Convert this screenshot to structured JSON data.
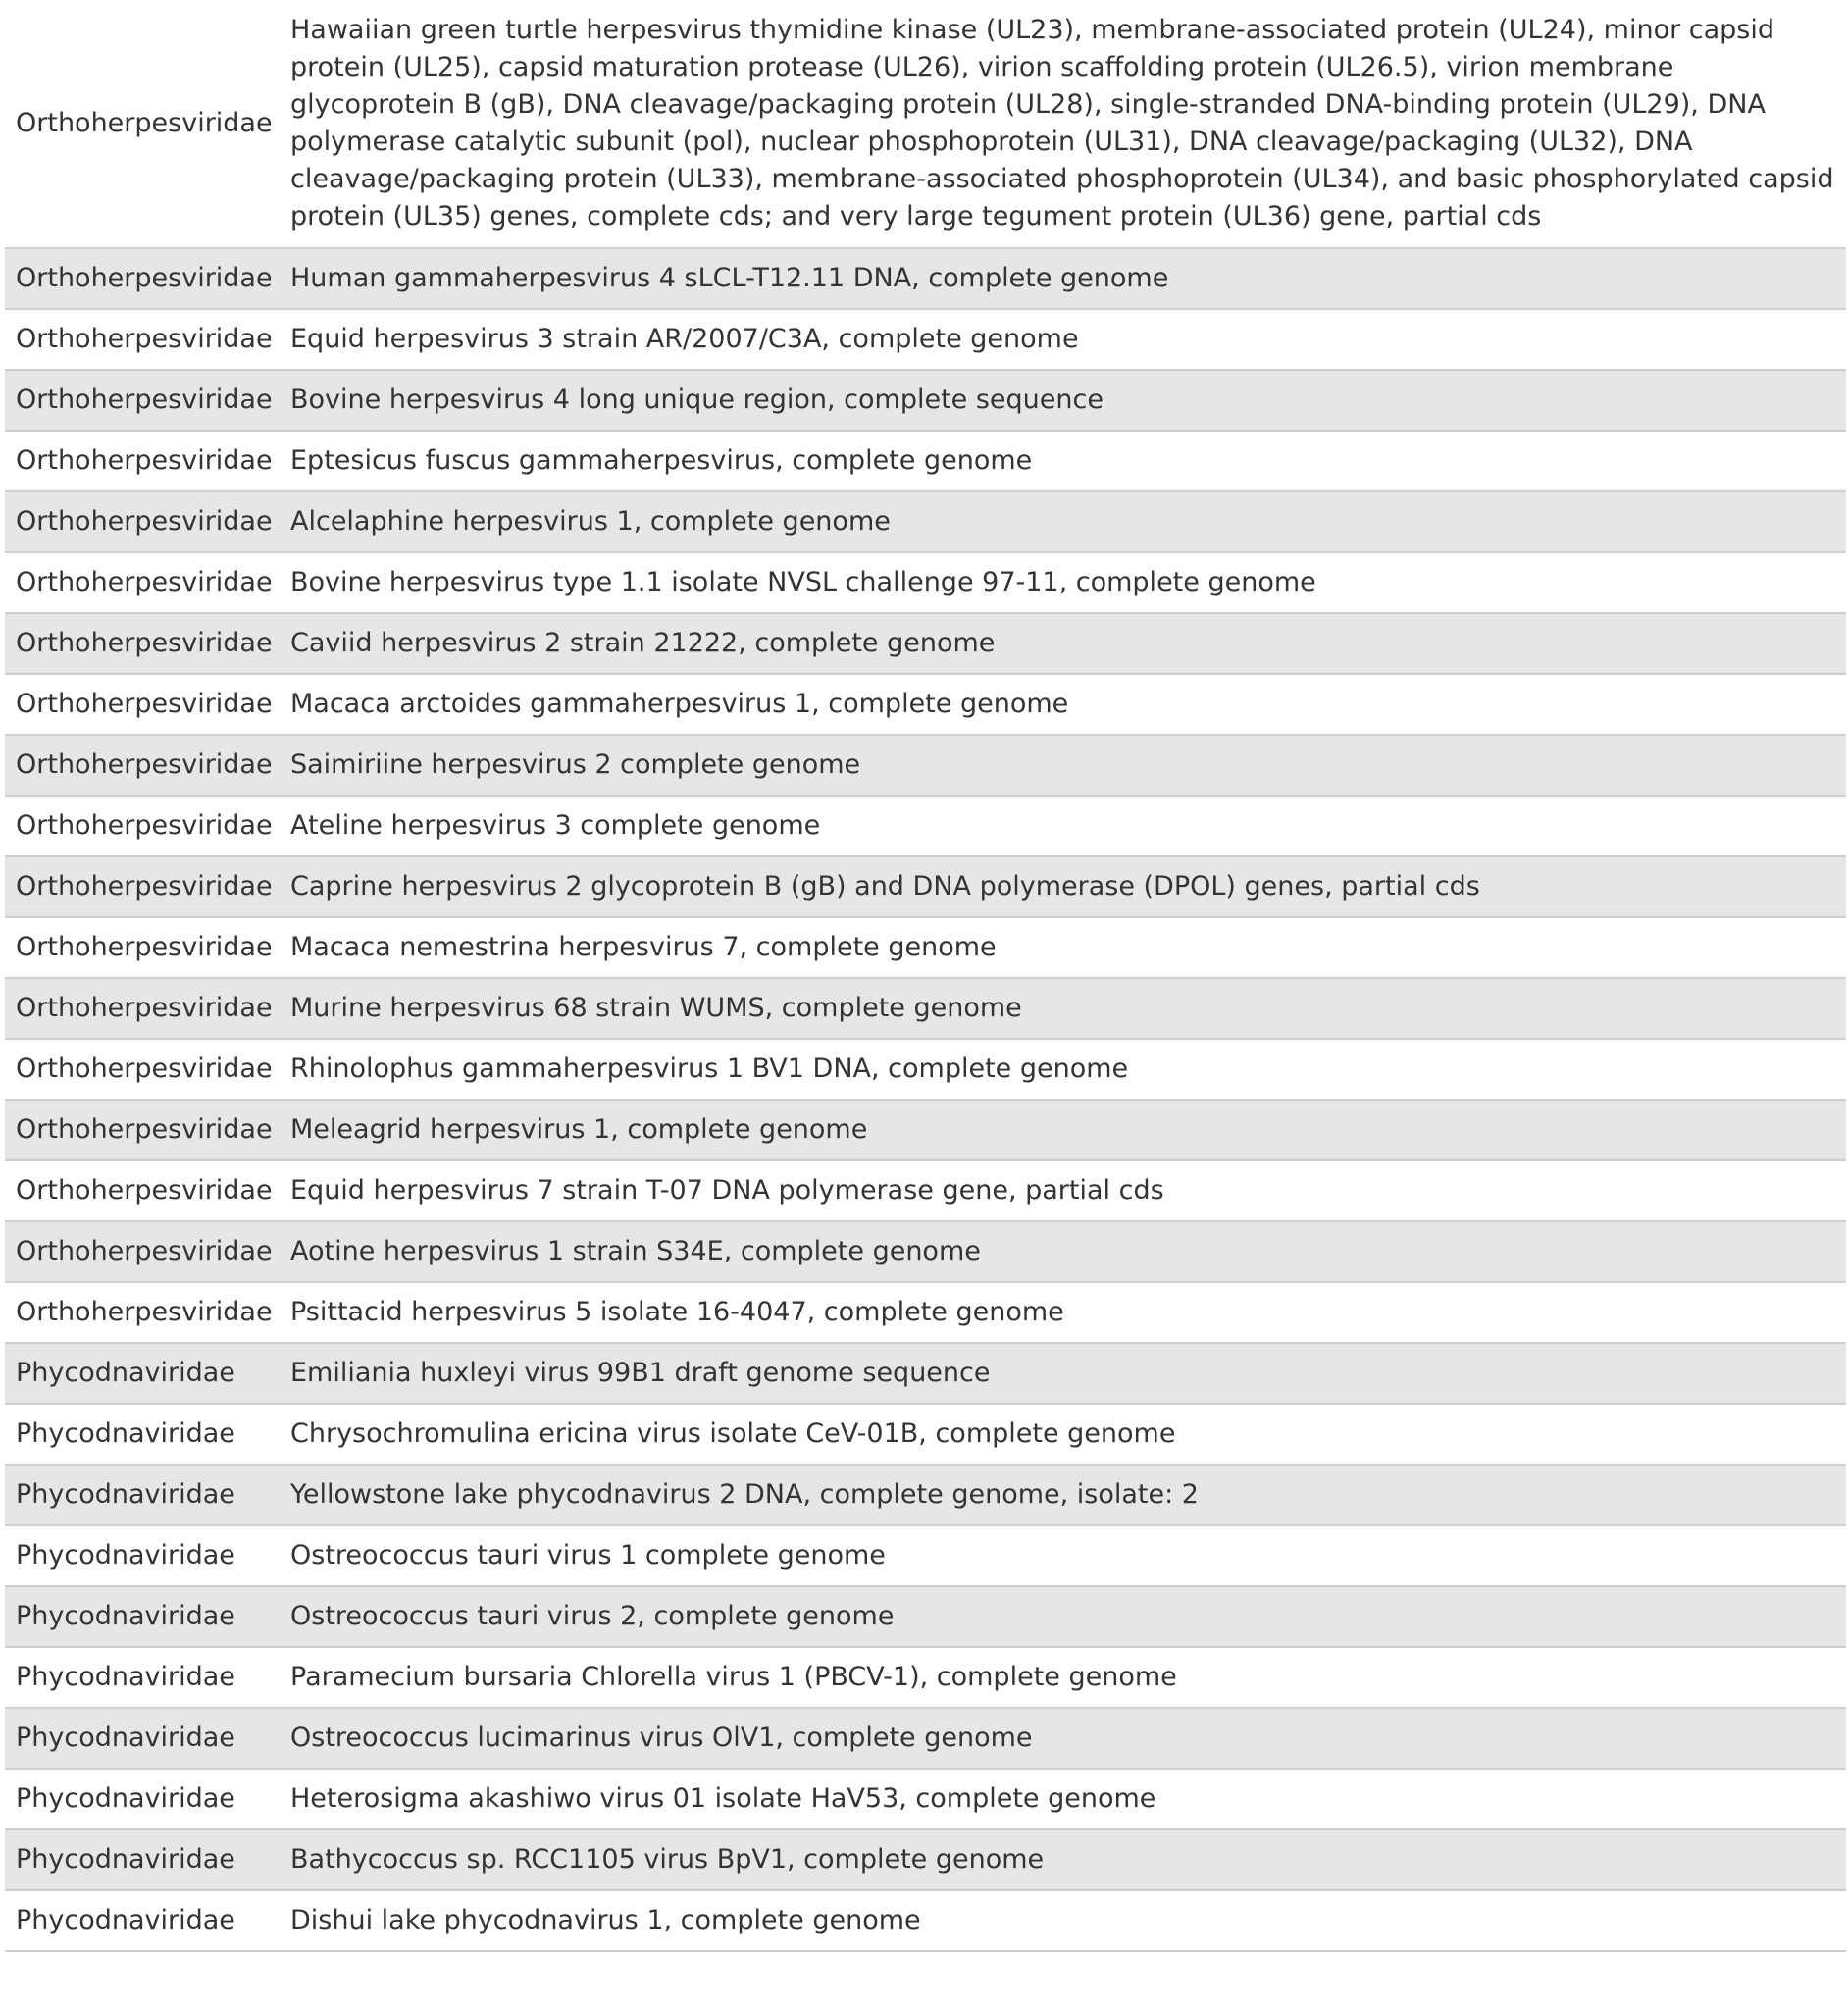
{
  "table": {
    "rows": [
      {
        "family": "Orthoherpesviridae",
        "description": "Hawaiian green turtle herpesvirus thymidine kinase (UL23), membrane-associated protein (UL24), minor capsid protein (UL25), capsid maturation protease (UL26), virion scaffolding protein (UL26.5), virion membrane glycoprotein B (gB), DNA cleavage/packaging protein (UL28), single-stranded DNA-binding protein (UL29), DNA polymerase catalytic subunit (pol), nuclear phosphoprotein (UL31), DNA cleavage/packaging (UL32), DNA cleavage/packaging protein (UL33), membrane-associated phosphoprotein (UL34), and basic phosphorylated capsid protein (UL35) genes, complete cds; and very large tegument protein (UL36) gene, partial cds"
      },
      {
        "family": "Orthoherpesviridae",
        "description": "Human gammaherpesvirus 4 sLCL-T12.11 DNA, complete genome"
      },
      {
        "family": "Orthoherpesviridae",
        "description": "Equid herpesvirus 3 strain AR/2007/C3A, complete genome"
      },
      {
        "family": "Orthoherpesviridae",
        "description": "Bovine herpesvirus 4 long unique region, complete sequence"
      },
      {
        "family": "Orthoherpesviridae",
        "description": "Eptesicus fuscus gammaherpesvirus, complete genome"
      },
      {
        "family": "Orthoherpesviridae",
        "description": "Alcelaphine herpesvirus 1, complete genome"
      },
      {
        "family": "Orthoherpesviridae",
        "description": "Bovine herpesvirus type 1.1 isolate NVSL challenge 97-11, complete genome"
      },
      {
        "family": "Orthoherpesviridae",
        "description": "Caviid herpesvirus 2 strain 21222, complete genome"
      },
      {
        "family": "Orthoherpesviridae",
        "description": "Macaca arctoides gammaherpesvirus 1, complete genome"
      },
      {
        "family": "Orthoherpesviridae",
        "description": "Saimiriine herpesvirus 2 complete genome"
      },
      {
        "family": "Orthoherpesviridae",
        "description": "Ateline herpesvirus 3 complete genome"
      },
      {
        "family": "Orthoherpesviridae",
        "description": "Caprine herpesvirus 2 glycoprotein B (gB) and DNA polymerase (DPOL) genes, partial cds"
      },
      {
        "family": "Orthoherpesviridae",
        "description": "Macaca nemestrina herpesvirus 7, complete genome"
      },
      {
        "family": "Orthoherpesviridae",
        "description": "Murine herpesvirus 68 strain WUMS, complete genome"
      },
      {
        "family": "Orthoherpesviridae",
        "description": "Rhinolophus gammaherpesvirus 1 BV1 DNA, complete genome"
      },
      {
        "family": "Orthoherpesviridae",
        "description": "Meleagrid herpesvirus 1, complete genome"
      },
      {
        "family": "Orthoherpesviridae",
        "description": "Equid herpesvirus 7 strain T-07 DNA polymerase gene, partial cds"
      },
      {
        "family": "Orthoherpesviridae",
        "description": "Aotine herpesvirus 1 strain S34E, complete genome"
      },
      {
        "family": "Orthoherpesviridae",
        "description": "Psittacid herpesvirus 5 isolate 16-4047, complete genome"
      },
      {
        "family": "Phycodnaviridae",
        "description": "Emiliania huxleyi virus 99B1 draft genome sequence"
      },
      {
        "family": "Phycodnaviridae",
        "description": "Chrysochromulina ericina virus isolate CeV-01B, complete genome"
      },
      {
        "family": "Phycodnaviridae",
        "description": "Yellowstone lake phycodnavirus 2 DNA, complete genome, isolate: 2"
      },
      {
        "family": "Phycodnaviridae",
        "description": "Ostreococcus tauri virus 1 complete genome"
      },
      {
        "family": "Phycodnaviridae",
        "description": "Ostreococcus tauri virus 2, complete genome"
      },
      {
        "family": "Phycodnaviridae",
        "description": "Paramecium bursaria Chlorella virus 1 (PBCV-1), complete genome"
      },
      {
        "family": "Phycodnaviridae",
        "description": "Ostreococcus lucimarinus virus OlV1, complete genome"
      },
      {
        "family": "Phycodnaviridae",
        "description": "Heterosigma akashiwo virus 01 isolate HaV53, complete genome"
      },
      {
        "family": "Phycodnaviridae",
        "description": "Bathycoccus sp. RCC1105 virus BpV1, complete genome"
      },
      {
        "family": "Phycodnaviridae",
        "description": "Dishui lake phycodnavirus 1, complete genome"
      }
    ]
  }
}
